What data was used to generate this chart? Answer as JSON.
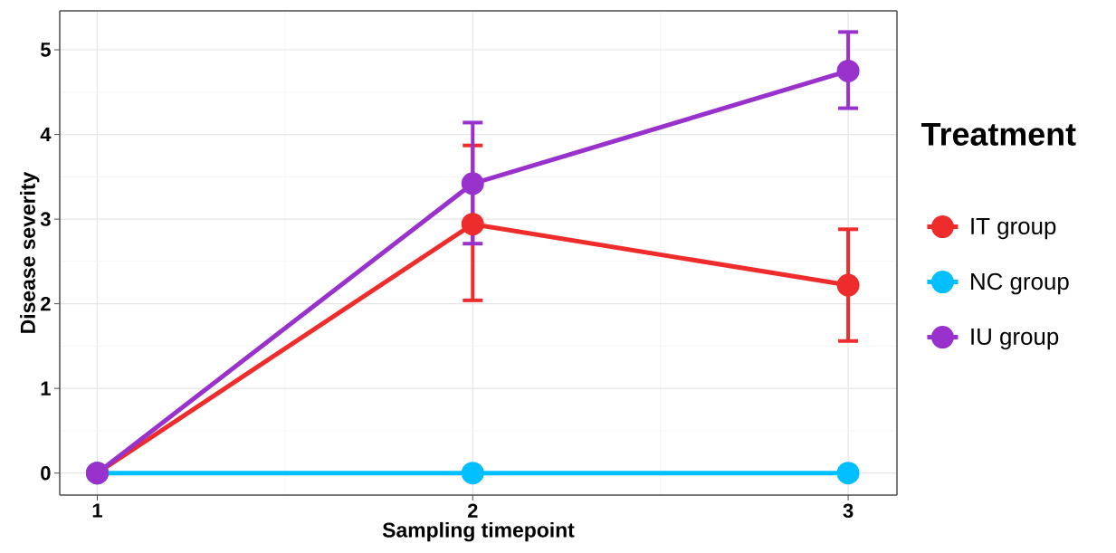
{
  "chart_data": {
    "type": "line",
    "xlabel": "Sampling timepoint",
    "ylabel": "Disease severity",
    "legend_title": "Treatment",
    "x": [
      1,
      2,
      3
    ],
    "series": [
      {
        "name": "IT group",
        "color": "#ee2c2c",
        "values": [
          0,
          2.94,
          2.22
        ],
        "errors": [
          null,
          [
            2.04,
            3.87
          ],
          [
            1.56,
            2.88
          ]
        ]
      },
      {
        "name": "NC group",
        "color": "#00bfff",
        "values": [
          0,
          0,
          0
        ]
      },
      {
        "name": "IU group",
        "color": "#9932cc",
        "values": [
          0,
          3.42,
          4.75
        ],
        "errors": [
          null,
          [
            2.71,
            4.14
          ],
          [
            4.31,
            5.21
          ]
        ]
      }
    ],
    "xlim": [
      0.9,
      3.13
    ],
    "ylim": [
      -0.26,
      5.46
    ],
    "xticks": [
      1,
      2,
      3
    ],
    "yticks": [
      0,
      1,
      2,
      3,
      4,
      5
    ],
    "grid": true,
    "legend": "right",
    "marker": "circle",
    "line_style": "solid"
  }
}
